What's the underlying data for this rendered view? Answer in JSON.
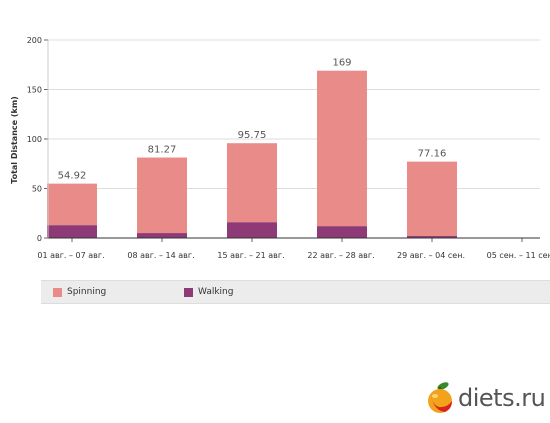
{
  "chart_data": {
    "type": "bar",
    "stacked": true,
    "categories": [
      "01 авг. – 07 авг.",
      "08 авг. – 14 авг.",
      "15 авг. – 21 авг.",
      "22 авг. – 28 авг.",
      "29 авг. – 04 сен.",
      "05 сен. – 11 сен."
    ],
    "series": [
      {
        "name": "Walking",
        "color": "#8e3a76",
        "values": [
          13,
          5,
          16,
          12,
          2,
          0
        ]
      },
      {
        "name": "Spinning",
        "color": "#e98b89",
        "values": [
          41.92,
          76.27,
          79.75,
          157,
          75.16,
          0
        ]
      }
    ],
    "totals_labels": [
      "54.92",
      "81.27",
      "95.75",
      "169",
      "77.16",
      ""
    ],
    "ylabel": "Total Distance (km)",
    "xlabel": "",
    "ylim": [
      0,
      200
    ],
    "yticks": [
      "0",
      "50",
      "100",
      "150",
      "200"
    ],
    "grid": true,
    "legend_position": "bottom"
  },
  "legend": {
    "items": [
      {
        "label": "Spinning",
        "color": "#e98b89"
      },
      {
        "label": "Walking",
        "color": "#8e3a76"
      }
    ]
  },
  "watermark": {
    "text": "diets.ru"
  }
}
